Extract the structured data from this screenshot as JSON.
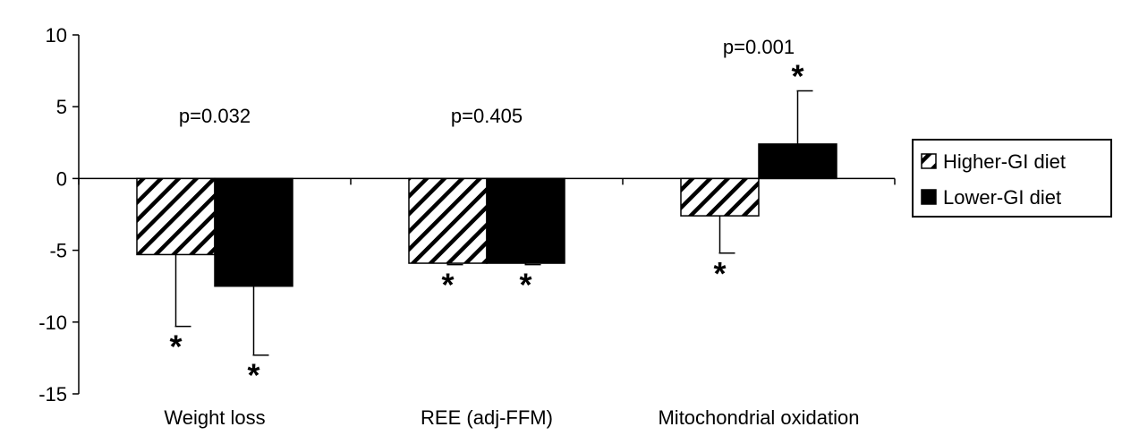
{
  "chart_data": {
    "type": "bar",
    "categories": [
      "Weight loss",
      "REE (adj-FFM)",
      "Mitochondrial oxidation"
    ],
    "series": [
      {
        "name": "Higher-GI diet",
        "pattern": "hatched",
        "values": [
          -5.3,
          -5.9,
          -2.6
        ],
        "error": [
          5.0,
          0.1,
          2.6
        ],
        "error_direction": [
          "down",
          "down",
          "down"
        ],
        "significant": [
          true,
          true,
          true
        ]
      },
      {
        "name": "Lower-GI diet",
        "pattern": "solid",
        "values": [
          -7.5,
          -5.9,
          2.4
        ],
        "error": [
          4.8,
          0.1,
          3.7
        ],
        "error_direction": [
          "down",
          "down",
          "up"
        ],
        "significant": [
          true,
          true,
          true
        ]
      }
    ],
    "p_values": [
      "p=0.032",
      "p=0.405",
      "p=0.001"
    ],
    "significance_marker": "*",
    "y_ticks": [
      "10",
      "5",
      "0",
      "-5",
      "-10",
      "-15"
    ],
    "ylim": [
      -15,
      10
    ],
    "y_tick_values": [
      10,
      5,
      0,
      -5,
      -10,
      -15
    ],
    "grid": false,
    "legend_position": "right",
    "colors": {
      "solid": "#000000",
      "hatch": "#000000",
      "axis": "#000000"
    }
  }
}
